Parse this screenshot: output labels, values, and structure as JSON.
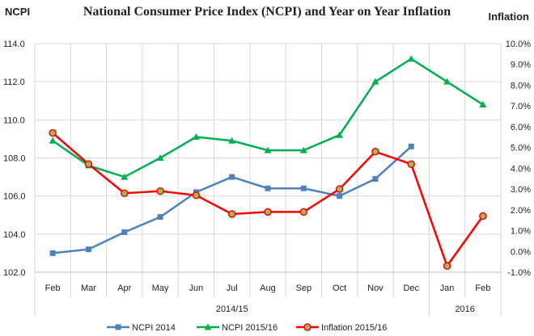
{
  "chart_data": {
    "type": "line",
    "title": "National Consumer Price Index (NCPI) and Year on Year Inflation",
    "ylabel": "NCPI",
    "y2label": "Inflation",
    "ylim": [
      102,
      114
    ],
    "y2lim": [
      -1,
      10
    ],
    "yticks": [
      "102.0",
      "104.0",
      "106.0",
      "108.0",
      "110.0",
      "112.0",
      "114.0"
    ],
    "y2ticks": [
      "-1.0%",
      "0.0%",
      "1.0%",
      "2.0%",
      "3.0%",
      "4.0%",
      "5.0%",
      "6.0%",
      "7.0%",
      "8.0%",
      "9.0%",
      "10.0%"
    ],
    "categories": [
      "Feb",
      "Mar",
      "Apr",
      "May",
      "Jun",
      "Jul",
      "Aug",
      "Sep",
      "Oct",
      "Nov",
      "Dec",
      "Jan",
      "Feb"
    ],
    "groups": [
      {
        "label": "2014/15",
        "span": 11
      },
      {
        "label": "2016",
        "span": 2
      }
    ],
    "grid": true,
    "legend": "bottom",
    "series": [
      {
        "name": "NCPI 2014",
        "axis": "left",
        "color": "#4f81bd",
        "marker": "square",
        "values": [
          103.0,
          103.2,
          104.1,
          104.9,
          106.2,
          107.0,
          106.4,
          106.4,
          106.0,
          106.9,
          108.6,
          null,
          null
        ]
      },
      {
        "name": "NCPI 2015/16",
        "axis": "left",
        "color": "#00b050",
        "marker": "triangle",
        "values": [
          108.9,
          107.6,
          107.0,
          108.0,
          109.1,
          108.9,
          108.4,
          108.4,
          109.2,
          112.0,
          113.2,
          112.0,
          110.8
        ]
      },
      {
        "name": "Inflation 2015/16",
        "axis": "right",
        "color": "#ff0000",
        "marker": "circle",
        "values": [
          5.7,
          4.2,
          2.8,
          2.9,
          2.7,
          1.8,
          1.9,
          1.9,
          3.0,
          4.8,
          4.2,
          -0.7,
          1.7
        ]
      }
    ]
  }
}
